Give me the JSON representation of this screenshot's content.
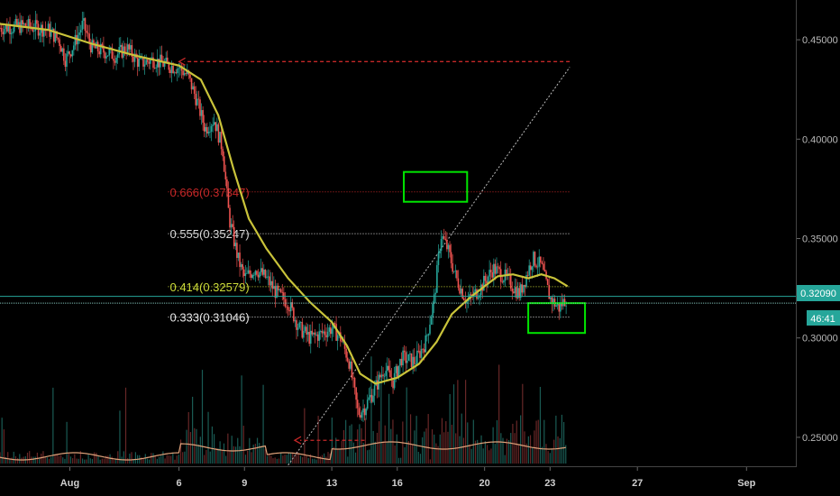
{
  "colors": {
    "background": "#000000",
    "candle_up": "#26a69a",
    "candle_down": "#ef5350",
    "moving_average": "#c9c33a",
    "volume_ma": "#e0a27a",
    "fib_0666": "#c62828",
    "fib_0555": "#d9d9d9",
    "fib_0414": "#cddc39",
    "fib_0333": "#e8e8e8",
    "current_price_line": "#26a69a",
    "highlight_box": "#00e600",
    "projection_arrow": "#c62828",
    "trend_line": "#bdbdbd",
    "axis_text": "#b8b8b8"
  },
  "axes": {
    "y_ticks": [
      "0.45000",
      "0.40000",
      "0.35000",
      "0.30000",
      "0.25000"
    ],
    "x_ticks": [
      "Aug",
      "6",
      "9",
      "13",
      "16",
      "20",
      "23",
      "27",
      "Sep"
    ]
  },
  "price_tag": {
    "price": "0.32090",
    "countdown": "46:41"
  },
  "fib_levels": [
    {
      "label": "0.666(0.37347)"
    },
    {
      "label": "0.555(0.35247)"
    },
    {
      "label": "0.414(0.32579)"
    },
    {
      "label": "0.333(0.31046)"
    }
  ],
  "chart_data": {
    "type": "candlestick",
    "ylim": [
      0.235,
      0.47
    ],
    "y_ticks": [
      0.45,
      0.4,
      0.35,
      0.3,
      0.25
    ],
    "x_ticks": [
      {
        "label": "Aug",
        "day": 1
      },
      {
        "label": "6",
        "day": 6
      },
      {
        "label": "9",
        "day": 9
      },
      {
        "label": "13",
        "day": 13
      },
      {
        "label": "16",
        "day": 16
      },
      {
        "label": "20",
        "day": 20
      },
      {
        "label": "23",
        "day": 23
      },
      {
        "label": "27",
        "day": 27
      },
      {
        "label": "Sep",
        "day": 32
      }
    ],
    "xlim_days": [
      -2.2,
      34.3
    ],
    "price_path": [
      [
        -2.2,
        0.456
      ],
      [
        -1.0,
        0.457
      ],
      [
        0.0,
        0.455
      ],
      [
        0.5,
        0.45
      ],
      [
        0.8,
        0.44
      ],
      [
        1.2,
        0.448
      ],
      [
        1.6,
        0.458
      ],
      [
        2.0,
        0.446
      ],
      [
        2.6,
        0.444
      ],
      [
        3.1,
        0.442
      ],
      [
        3.6,
        0.446
      ],
      [
        4.2,
        0.438
      ],
      [
        4.8,
        0.44
      ],
      [
        5.5,
        0.437
      ],
      [
        6.0,
        0.436
      ],
      [
        6.4,
        0.432
      ],
      [
        6.8,
        0.42
      ],
      [
        7.2,
        0.405
      ],
      [
        7.6,
        0.41
      ],
      [
        8.0,
        0.395
      ],
      [
        8.3,
        0.36
      ],
      [
        8.7,
        0.34
      ],
      [
        9.0,
        0.33
      ],
      [
        9.5,
        0.335
      ],
      [
        10.0,
        0.33
      ],
      [
        10.5,
        0.322
      ],
      [
        11.0,
        0.318
      ],
      [
        11.5,
        0.305
      ],
      [
        12.0,
        0.3
      ],
      [
        12.5,
        0.302
      ],
      [
        13.0,
        0.305
      ],
      [
        13.4,
        0.3
      ],
      [
        13.8,
        0.288
      ],
      [
        14.2,
        0.262
      ],
      [
        14.5,
        0.265
      ],
      [
        15.0,
        0.275
      ],
      [
        15.4,
        0.285
      ],
      [
        15.8,
        0.278
      ],
      [
        16.2,
        0.29
      ],
      [
        16.8,
        0.288
      ],
      [
        17.3,
        0.298
      ],
      [
        17.7,
        0.32
      ],
      [
        18.0,
        0.352
      ],
      [
        18.3,
        0.345
      ],
      [
        18.7,
        0.33
      ],
      [
        19.2,
        0.318
      ],
      [
        19.8,
        0.325
      ],
      [
        20.4,
        0.335
      ],
      [
        21.0,
        0.33
      ],
      [
        21.6,
        0.322
      ],
      [
        22.2,
        0.34
      ],
      [
        22.6,
        0.336
      ],
      [
        23.0,
        0.32
      ],
      [
        23.4,
        0.315
      ],
      [
        23.8,
        0.321
      ]
    ],
    "moving_average": [
      [
        -2.2,
        0.458
      ],
      [
        0.0,
        0.455
      ],
      [
        2.0,
        0.448
      ],
      [
        4.0,
        0.442
      ],
      [
        6.0,
        0.437
      ],
      [
        7.0,
        0.43
      ],
      [
        7.8,
        0.412
      ],
      [
        8.5,
        0.385
      ],
      [
        9.2,
        0.36
      ],
      [
        10.0,
        0.345
      ],
      [
        11.0,
        0.33
      ],
      [
        12.0,
        0.318
      ],
      [
        13.0,
        0.308
      ],
      [
        13.7,
        0.296
      ],
      [
        14.3,
        0.282
      ],
      [
        15.0,
        0.277
      ],
      [
        16.0,
        0.28
      ],
      [
        17.0,
        0.287
      ],
      [
        17.8,
        0.298
      ],
      [
        18.5,
        0.312
      ],
      [
        19.3,
        0.32
      ],
      [
        20.0,
        0.326
      ],
      [
        20.6,
        0.331
      ],
      [
        21.3,
        0.332
      ],
      [
        22.0,
        0.33
      ],
      [
        22.6,
        0.332
      ],
      [
        23.2,
        0.33
      ],
      [
        23.8,
        0.326
      ]
    ],
    "fib_levels": [
      {
        "ratio": 0.666,
        "price": 0.37347,
        "label": "0.666(0.37347)"
      },
      {
        "ratio": 0.555,
        "price": 0.35247,
        "label": "0.555(0.35247)"
      },
      {
        "ratio": 0.414,
        "price": 0.32579,
        "label": "0.414(0.32579)"
      },
      {
        "ratio": 0.333,
        "price": 0.31046,
        "label": "0.333(0.31046)"
      }
    ],
    "fib_x_range": [
      5.5,
      23.9
    ],
    "current_price": 0.3209,
    "secondary_price_line": 0.3175,
    "highlight_boxes": [
      {
        "x0": 16.3,
        "x1": 19.2,
        "y0": 0.3685,
        "y1": 0.3835
      },
      {
        "x0": 22.0,
        "x1": 24.6,
        "y0": 0.3025,
        "y1": 0.3175
      }
    ],
    "projection_arrow": {
      "x_from": 23.9,
      "x_to": 6.0,
      "price": 0.439
    },
    "trend_line": {
      "from": [
        11.0,
        0.236
      ],
      "to": [
        23.9,
        0.4362
      ]
    },
    "volume_arrow": {
      "x_from": 11.3,
      "x_to": 14.5,
      "price": 0.2485
    }
  }
}
